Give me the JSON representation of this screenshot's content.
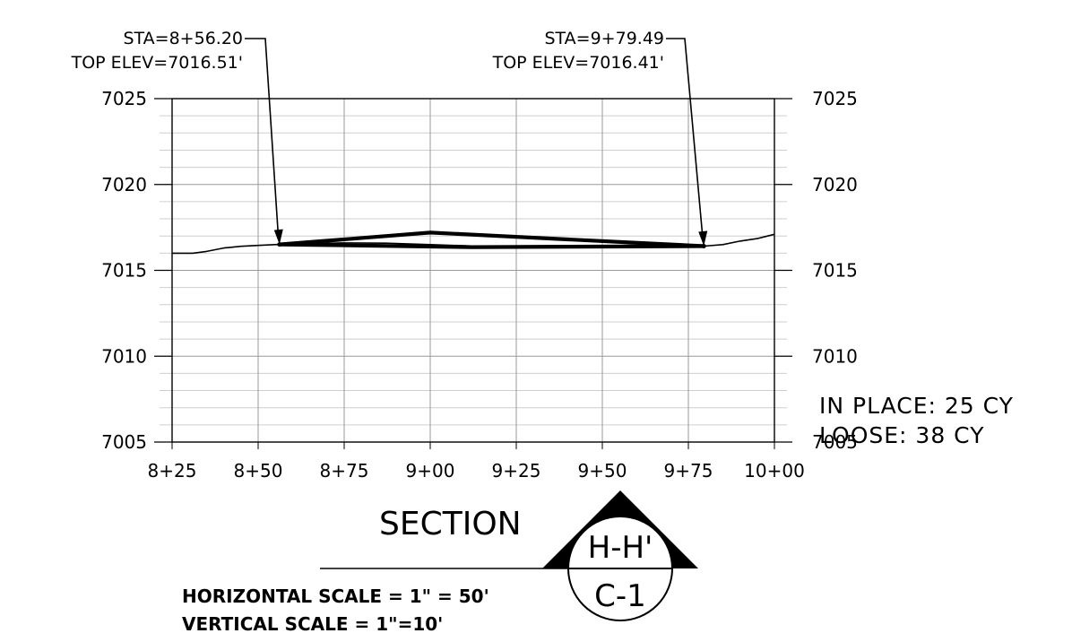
{
  "chart_data": {
    "type": "line",
    "x_tick_labels": [
      "8+25",
      "8+50",
      "8+75",
      "9+00",
      "9+25",
      "9+50",
      "9+75",
      "10+00"
    ],
    "x_ticks": [
      825,
      850,
      875,
      900,
      925,
      950,
      975,
      1000
    ],
    "y_ticks": [
      7005,
      7010,
      7015,
      7020,
      7025
    ],
    "xlim": [
      825,
      1000
    ],
    "ylim": [
      7005,
      7025
    ],
    "grid": true,
    "series": [
      {
        "x": [
          825,
          831,
          835,
          840,
          845,
          850,
          856.2,
          865,
          875,
          887,
          900,
          912,
          925,
          937,
          950,
          962,
          975,
          979.49,
          985,
          990,
          995,
          997,
          1000
        ],
        "y": [
          7016.0,
          7016.0,
          7016.1,
          7016.3,
          7016.4,
          7016.45,
          7016.51,
          7016.55,
          7016.6,
          7016.58,
          7016.5,
          7016.42,
          7016.42,
          7016.43,
          7016.44,
          7016.44,
          7016.42,
          7016.41,
          7016.5,
          7016.7,
          7016.85,
          7016.95,
          7017.1
        ]
      },
      {
        "x": [
          856.2,
          900,
          979.49
        ],
        "y": [
          7016.51,
          7017.2,
          7016.41
        ]
      },
      {
        "x": [
          856.2,
          912,
          979.49
        ],
        "y": [
          7016.51,
          7016.35,
          7016.41
        ]
      }
    ],
    "annotations": [
      {
        "line1": "STA=8+56.20",
        "line2": "TOP ELEV=7016.51'",
        "x": 856.2,
        "y": 7016.51
      },
      {
        "line1": "STA=9+79.49",
        "line2": "TOP ELEV=7016.41'",
        "x": 979.49,
        "y": 7016.41
      }
    ]
  },
  "quantities": {
    "in_place": "IN PLACE: 25 CY",
    "loose": "LOOSE: 38 CY"
  },
  "section_label": {
    "word": "SECTION",
    "section_id": "H-H'",
    "sheet_id": "C-1"
  },
  "scales": {
    "horizontal": "HORIZONTAL SCALE = 1\" = 50'",
    "vertical": "VERTICAL SCALE = 1\"=10'"
  }
}
